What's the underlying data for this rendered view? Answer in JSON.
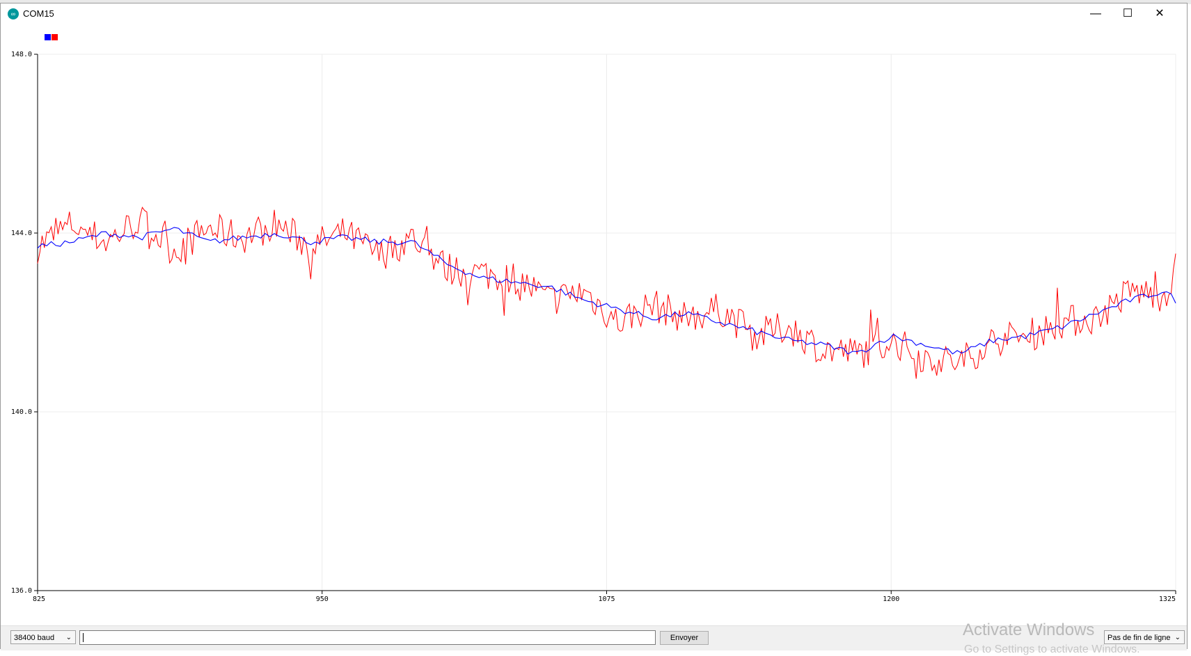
{
  "window": {
    "title": "COM15"
  },
  "window_controls": {
    "minimize": "—",
    "maximize": "☐",
    "close": "✕"
  },
  "colors": {
    "series_1": "#0000ff",
    "series_2": "#ff0000",
    "grid": "#ececec",
    "axis": "#000000"
  },
  "chart_data": {
    "type": "line",
    "xlim": [
      825,
      1325
    ],
    "ylim": [
      136.0,
      148.0
    ],
    "x_ticks": [
      "825",
      "950",
      "1075",
      "1200",
      "1325"
    ],
    "y_ticks": [
      "136.0",
      "140.0",
      "144.0",
      "148.0"
    ],
    "grid": true,
    "legend": "top-left",
    "series": [
      {
        "color": "#0000ff",
        "x": [
          825,
          840,
          855,
          870,
          885,
          900,
          915,
          930,
          945,
          960,
          975,
          990,
          1005,
          1020,
          1035,
          1050,
          1065,
          1080,
          1095,
          1110,
          1125,
          1140,
          1155,
          1170,
          1185,
          1200,
          1215,
          1230,
          1245,
          1260,
          1275,
          1290,
          1305,
          1320,
          1325
        ],
        "values": [
          143.7,
          143.8,
          144.0,
          143.9,
          144.1,
          143.8,
          143.9,
          144.0,
          143.8,
          143.9,
          143.8,
          143.8,
          143.3,
          143.0,
          142.9,
          142.8,
          142.5,
          142.3,
          142.1,
          142.2,
          142.0,
          141.8,
          141.6,
          141.5,
          141.3,
          141.7,
          141.5,
          141.3,
          141.6,
          141.7,
          141.9,
          142.2,
          142.5,
          142.7,
          142.5
        ]
      },
      {
        "color": "#ff0000",
        "x": [
          825,
          840,
          855,
          870,
          885,
          900,
          915,
          930,
          945,
          960,
          975,
          990,
          1005,
          1020,
          1035,
          1050,
          1065,
          1080,
          1095,
          1110,
          1125,
          1140,
          1155,
          1170,
          1185,
          1200,
          1215,
          1230,
          1245,
          1260,
          1275,
          1290,
          1305,
          1320,
          1325
        ],
        "values": [
          143.7,
          144.2,
          143.8,
          144.3,
          143.6,
          144.1,
          143.9,
          144.2,
          143.7,
          144.0,
          143.5,
          143.9,
          143.2,
          143.1,
          143.0,
          142.5,
          142.7,
          142.0,
          142.4,
          142.1,
          142.3,
          141.7,
          141.9,
          141.4,
          141.3,
          141.6,
          141.2,
          141.1,
          141.6,
          141.7,
          142.0,
          142.1,
          142.7,
          142.6,
          143.2
        ],
        "noise": 0.38
      }
    ]
  },
  "bottom_bar": {
    "baud": "38400 baud",
    "input_value": "",
    "send_label": "Envoyer",
    "line_ending": "Pas de fin de ligne"
  },
  "watermark": {
    "line1": "Activate Windows",
    "line2": "Go to Settings to activate Windows."
  }
}
